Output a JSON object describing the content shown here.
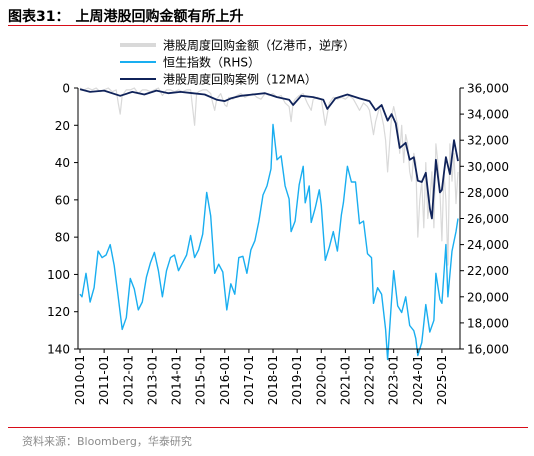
{
  "figure": {
    "label": "图表31：",
    "title": "上周港股回购金额有所上升",
    "source": "资料来源：Bloomberg，华泰研究"
  },
  "colors": {
    "accent_red": "#d80c18",
    "buyback_grey": "#d9d9d9",
    "hsi_blue": "#19aef0",
    "ma_navy": "#10235a"
  },
  "chart_data": {
    "type": "line",
    "dual_axis": true,
    "grid": false,
    "legend_position": "top-center",
    "x_type": "date",
    "xlim": [
      "2009-12-01",
      "2025-10-01"
    ],
    "x_tick_labels": [
      "2010-01",
      "2011-01",
      "2012-01",
      "2013-01",
      "2014-01",
      "2015-01",
      "2016-01",
      "2017-01",
      "2018-01",
      "2019-01",
      "2020-01",
      "2021-01",
      "2022-01",
      "2023-01",
      "2024-01",
      "2025-01"
    ],
    "y_left": {
      "range": [
        0,
        140
      ],
      "inverted": true,
      "ticks": [
        0,
        20,
        40,
        60,
        80,
        100,
        120,
        140
      ]
    },
    "y_right": {
      "range": [
        16000,
        36000
      ],
      "ticks": [
        16000,
        18000,
        20000,
        22000,
        24000,
        26000,
        28000,
        30000,
        32000,
        34000,
        36000
      ],
      "tick_labels": [
        "16,000",
        "18,000",
        "20,000",
        "22,000",
        "24,000",
        "26,000",
        "28,000",
        "30,000",
        "32,000",
        "34,000",
        "36,000"
      ]
    },
    "series": [
      {
        "name": "港股周度回购金额（亿港币，逆序）",
        "axis": "left",
        "color": "#d9d9d9",
        "points": [
          [
            "2010-01",
            0
          ],
          [
            "2010-03",
            1
          ],
          [
            "2010-05",
            0
          ],
          [
            "2010-07",
            1
          ],
          [
            "2010-09",
            0
          ],
          [
            "2010-11",
            2
          ],
          [
            "2011-01",
            1
          ],
          [
            "2011-03",
            0
          ],
          [
            "2011-05",
            2
          ],
          [
            "2011-07",
            1
          ],
          [
            "2011-08",
            8
          ],
          [
            "2011-09",
            14
          ],
          [
            "2011-10",
            4
          ],
          [
            "2011-12",
            1
          ],
          [
            "2012-02",
            1
          ],
          [
            "2012-04",
            0
          ],
          [
            "2012-06",
            3
          ],
          [
            "2012-08",
            1
          ],
          [
            "2012-10",
            1
          ],
          [
            "2012-12",
            2
          ],
          [
            "2013-02",
            1
          ],
          [
            "2013-04",
            0
          ],
          [
            "2013-06",
            4
          ],
          [
            "2013-08",
            1
          ],
          [
            "2013-10",
            1
          ],
          [
            "2013-12",
            2
          ],
          [
            "2014-02",
            1
          ],
          [
            "2014-04",
            2
          ],
          [
            "2014-06",
            1
          ],
          [
            "2014-08",
            1
          ],
          [
            "2014-10",
            20
          ],
          [
            "2014-11",
            3
          ],
          [
            "2014-12",
            2
          ],
          [
            "2015-02",
            1
          ],
          [
            "2015-04",
            1
          ],
          [
            "2015-06",
            3
          ],
          [
            "2015-07",
            8
          ],
          [
            "2015-08",
            12
          ],
          [
            "2015-09",
            6
          ],
          [
            "2015-11",
            3
          ],
          [
            "2016-01",
            9
          ],
          [
            "2016-02",
            10
          ],
          [
            "2016-03",
            5
          ],
          [
            "2016-05",
            6
          ],
          [
            "2016-07",
            4
          ],
          [
            "2016-09",
            3
          ],
          [
            "2016-11",
            5
          ],
          [
            "2017-01",
            4
          ],
          [
            "2017-03",
            3
          ],
          [
            "2017-05",
            5
          ],
          [
            "2017-07",
            6
          ],
          [
            "2017-09",
            3
          ],
          [
            "2017-11",
            4
          ],
          [
            "2018-01",
            3
          ],
          [
            "2018-03",
            5
          ],
          [
            "2018-05",
            4
          ],
          [
            "2018-07",
            8
          ],
          [
            "2018-09",
            10
          ],
          [
            "2018-10",
            18
          ],
          [
            "2018-11",
            8
          ],
          [
            "2018-12",
            6
          ],
          [
            "2019-02",
            4
          ],
          [
            "2019-04",
            3
          ],
          [
            "2019-06",
            8
          ],
          [
            "2019-08",
            12
          ],
          [
            "2019-09",
            6
          ],
          [
            "2019-11",
            5
          ],
          [
            "2020-01",
            6
          ],
          [
            "2020-03",
            20
          ],
          [
            "2020-04",
            14
          ],
          [
            "2020-05",
            8
          ],
          [
            "2020-07",
            5
          ],
          [
            "2020-09",
            6
          ],
          [
            "2020-11",
            5
          ],
          [
            "2021-01",
            6
          ],
          [
            "2021-03",
            4
          ],
          [
            "2021-05",
            6
          ],
          [
            "2021-07",
            10
          ],
          [
            "2021-08",
            12
          ],
          [
            "2021-10",
            8
          ],
          [
            "2021-12",
            10
          ],
          [
            "2022-01",
            12
          ],
          [
            "2022-03",
            25
          ],
          [
            "2022-04",
            18
          ],
          [
            "2022-05",
            14
          ],
          [
            "2022-06",
            10
          ],
          [
            "2022-08",
            20
          ],
          [
            "2022-09",
            28
          ],
          [
            "2022-10",
            45
          ],
          [
            "2022-11",
            30
          ],
          [
            "2022-12",
            15
          ],
          [
            "2023-01",
            10
          ],
          [
            "2023-03",
            20
          ],
          [
            "2023-04",
            35
          ],
          [
            "2023-05",
            20
          ],
          [
            "2023-06",
            40
          ],
          [
            "2023-07",
            25
          ],
          [
            "2023-08",
            30
          ],
          [
            "2023-09",
            45
          ],
          [
            "2023-10",
            50
          ],
          [
            "2023-11",
            35
          ],
          [
            "2023-12",
            40
          ],
          [
            "2024-01",
            80
          ],
          [
            "2024-02",
            60
          ],
          [
            "2024-03",
            50
          ],
          [
            "2024-04",
            75
          ],
          [
            "2024-05",
            40
          ],
          [
            "2024-06",
            70
          ],
          [
            "2024-07",
            60
          ],
          [
            "2024-08",
            45
          ],
          [
            "2024-09",
            75
          ],
          [
            "2024-10",
            30
          ],
          [
            "2024-11",
            40
          ],
          [
            "2024-12",
            55
          ],
          [
            "2025-01",
            82
          ],
          [
            "2025-02",
            45
          ],
          [
            "2025-03",
            60
          ],
          [
            "2025-04",
            95
          ],
          [
            "2025-05",
            30
          ],
          [
            "2025-06",
            50
          ],
          [
            "2025-07",
            35
          ],
          [
            "2025-08",
            62
          ],
          [
            "2025-09",
            45
          ]
        ]
      },
      {
        "name": "恒生指数（RHS）",
        "axis": "right",
        "color": "#19aef0",
        "points": [
          [
            "2010-01",
            20200
          ],
          [
            "2010-02",
            20000
          ],
          [
            "2010-04",
            21800
          ],
          [
            "2010-06",
            19600
          ],
          [
            "2010-08",
            20700
          ],
          [
            "2010-10",
            23500
          ],
          [
            "2010-12",
            23000
          ],
          [
            "2011-02",
            23200
          ],
          [
            "2011-04",
            24000
          ],
          [
            "2011-06",
            22400
          ],
          [
            "2011-08",
            20000
          ],
          [
            "2011-10",
            17500
          ],
          [
            "2011-12",
            18400
          ],
          [
            "2012-02",
            21400
          ],
          [
            "2012-04",
            20600
          ],
          [
            "2012-06",
            19000
          ],
          [
            "2012-08",
            19600
          ],
          [
            "2012-10",
            21500
          ],
          [
            "2012-12",
            22600
          ],
          [
            "2013-02",
            23400
          ],
          [
            "2013-04",
            22000
          ],
          [
            "2013-06",
            20000
          ],
          [
            "2013-08",
            22000
          ],
          [
            "2013-10",
            23000
          ],
          [
            "2013-12",
            23200
          ],
          [
            "2014-02",
            22000
          ],
          [
            "2014-04",
            22600
          ],
          [
            "2014-06",
            23200
          ],
          [
            "2014-08",
            24700
          ],
          [
            "2014-10",
            23000
          ],
          [
            "2014-12",
            23600
          ],
          [
            "2015-02",
            24800
          ],
          [
            "2015-04",
            28000
          ],
          [
            "2015-06",
            26200
          ],
          [
            "2015-08",
            21800
          ],
          [
            "2015-10",
            22500
          ],
          [
            "2015-12",
            21900
          ],
          [
            "2016-02",
            19000
          ],
          [
            "2016-04",
            21000
          ],
          [
            "2016-06",
            20200
          ],
          [
            "2016-08",
            23000
          ],
          [
            "2016-10",
            23100
          ],
          [
            "2016-12",
            21800
          ],
          [
            "2017-02",
            23600
          ],
          [
            "2017-04",
            24300
          ],
          [
            "2017-06",
            25800
          ],
          [
            "2017-08",
            27800
          ],
          [
            "2017-10",
            28500
          ],
          [
            "2017-12",
            29800
          ],
          [
            "2018-01",
            33200
          ],
          [
            "2018-03",
            30500
          ],
          [
            "2018-05",
            30800
          ],
          [
            "2018-07",
            28500
          ],
          [
            "2018-09",
            27500
          ],
          [
            "2018-10",
            25000
          ],
          [
            "2018-12",
            25800
          ],
          [
            "2019-02",
            28600
          ],
          [
            "2019-04",
            30000
          ],
          [
            "2019-05",
            27200
          ],
          [
            "2019-07",
            28500
          ],
          [
            "2019-08",
            25700
          ],
          [
            "2019-10",
            26800
          ],
          [
            "2019-12",
            28200
          ],
          [
            "2020-01",
            27000
          ],
          [
            "2020-03",
            22800
          ],
          [
            "2020-05",
            23800
          ],
          [
            "2020-07",
            25000
          ],
          [
            "2020-09",
            23500
          ],
          [
            "2020-11",
            26300
          ],
          [
            "2020-12",
            27200
          ],
          [
            "2021-02",
            30000
          ],
          [
            "2021-04",
            28800
          ],
          [
            "2021-06",
            28800
          ],
          [
            "2021-08",
            25600
          ],
          [
            "2021-10",
            25800
          ],
          [
            "2021-12",
            23300
          ],
          [
            "2022-02",
            23000
          ],
          [
            "2022-03",
            19500
          ],
          [
            "2022-05",
            20700
          ],
          [
            "2022-07",
            20200
          ],
          [
            "2022-09",
            17500
          ],
          [
            "2022-10",
            15200
          ],
          [
            "2022-12",
            19800
          ],
          [
            "2023-01",
            22000
          ],
          [
            "2023-03",
            19300
          ],
          [
            "2023-05",
            18800
          ],
          [
            "2023-07",
            20000
          ],
          [
            "2023-09",
            17800
          ],
          [
            "2023-11",
            17400
          ],
          [
            "2023-12",
            16800
          ],
          [
            "2024-01",
            15500
          ],
          [
            "2024-03",
            16500
          ],
          [
            "2024-05",
            19400
          ],
          [
            "2024-07",
            17300
          ],
          [
            "2024-09",
            18200
          ],
          [
            "2024-10",
            21800
          ],
          [
            "2024-12",
            19800
          ],
          [
            "2025-01",
            19500
          ],
          [
            "2025-03",
            24000
          ],
          [
            "2025-04",
            20000
          ],
          [
            "2025-06",
            23500
          ],
          [
            "2025-08",
            25000
          ],
          [
            "2025-09",
            26000
          ]
        ]
      },
      {
        "name": "港股周度回购案例（12MA）",
        "axis": "right",
        "color": "#10235a",
        "points": [
          [
            "2010-01",
            35900
          ],
          [
            "2010-06",
            35700
          ],
          [
            "2011-01",
            35800
          ],
          [
            "2011-09",
            35400
          ],
          [
            "2012-03",
            35700
          ],
          [
            "2012-09",
            35500
          ],
          [
            "2013-03",
            35800
          ],
          [
            "2013-09",
            35600
          ],
          [
            "2014-03",
            35700
          ],
          [
            "2014-09",
            35600
          ],
          [
            "2015-03",
            35500
          ],
          [
            "2015-09",
            35100
          ],
          [
            "2016-01",
            35000
          ],
          [
            "2016-04",
            35200
          ],
          [
            "2016-09",
            35400
          ],
          [
            "2017-03",
            35500
          ],
          [
            "2017-09",
            35600
          ],
          [
            "2018-03",
            35300
          ],
          [
            "2018-09",
            35100
          ],
          [
            "2018-11",
            34700
          ],
          [
            "2019-03",
            35400
          ],
          [
            "2019-09",
            35300
          ],
          [
            "2020-02",
            35100
          ],
          [
            "2020-04",
            34400
          ],
          [
            "2020-08",
            35200
          ],
          [
            "2021-02",
            35500
          ],
          [
            "2021-08",
            35200
          ],
          [
            "2022-01",
            35000
          ],
          [
            "2022-04",
            34300
          ],
          [
            "2022-07",
            34700
          ],
          [
            "2022-10",
            33500
          ],
          [
            "2022-12",
            34000
          ],
          [
            "2023-02",
            33300
          ],
          [
            "2023-04",
            31400
          ],
          [
            "2023-07",
            31800
          ],
          [
            "2023-09",
            30500
          ],
          [
            "2023-11",
            30700
          ],
          [
            "2024-01",
            28900
          ],
          [
            "2024-03",
            28800
          ],
          [
            "2024-05",
            29500
          ],
          [
            "2024-07",
            26800
          ],
          [
            "2024-08",
            26000
          ],
          [
            "2024-10",
            30500
          ],
          [
            "2024-12",
            28000
          ],
          [
            "2025-01",
            28200
          ],
          [
            "2025-03",
            30700
          ],
          [
            "2025-05",
            29400
          ],
          [
            "2025-07",
            32000
          ],
          [
            "2025-09",
            30400
          ]
        ]
      }
    ]
  }
}
